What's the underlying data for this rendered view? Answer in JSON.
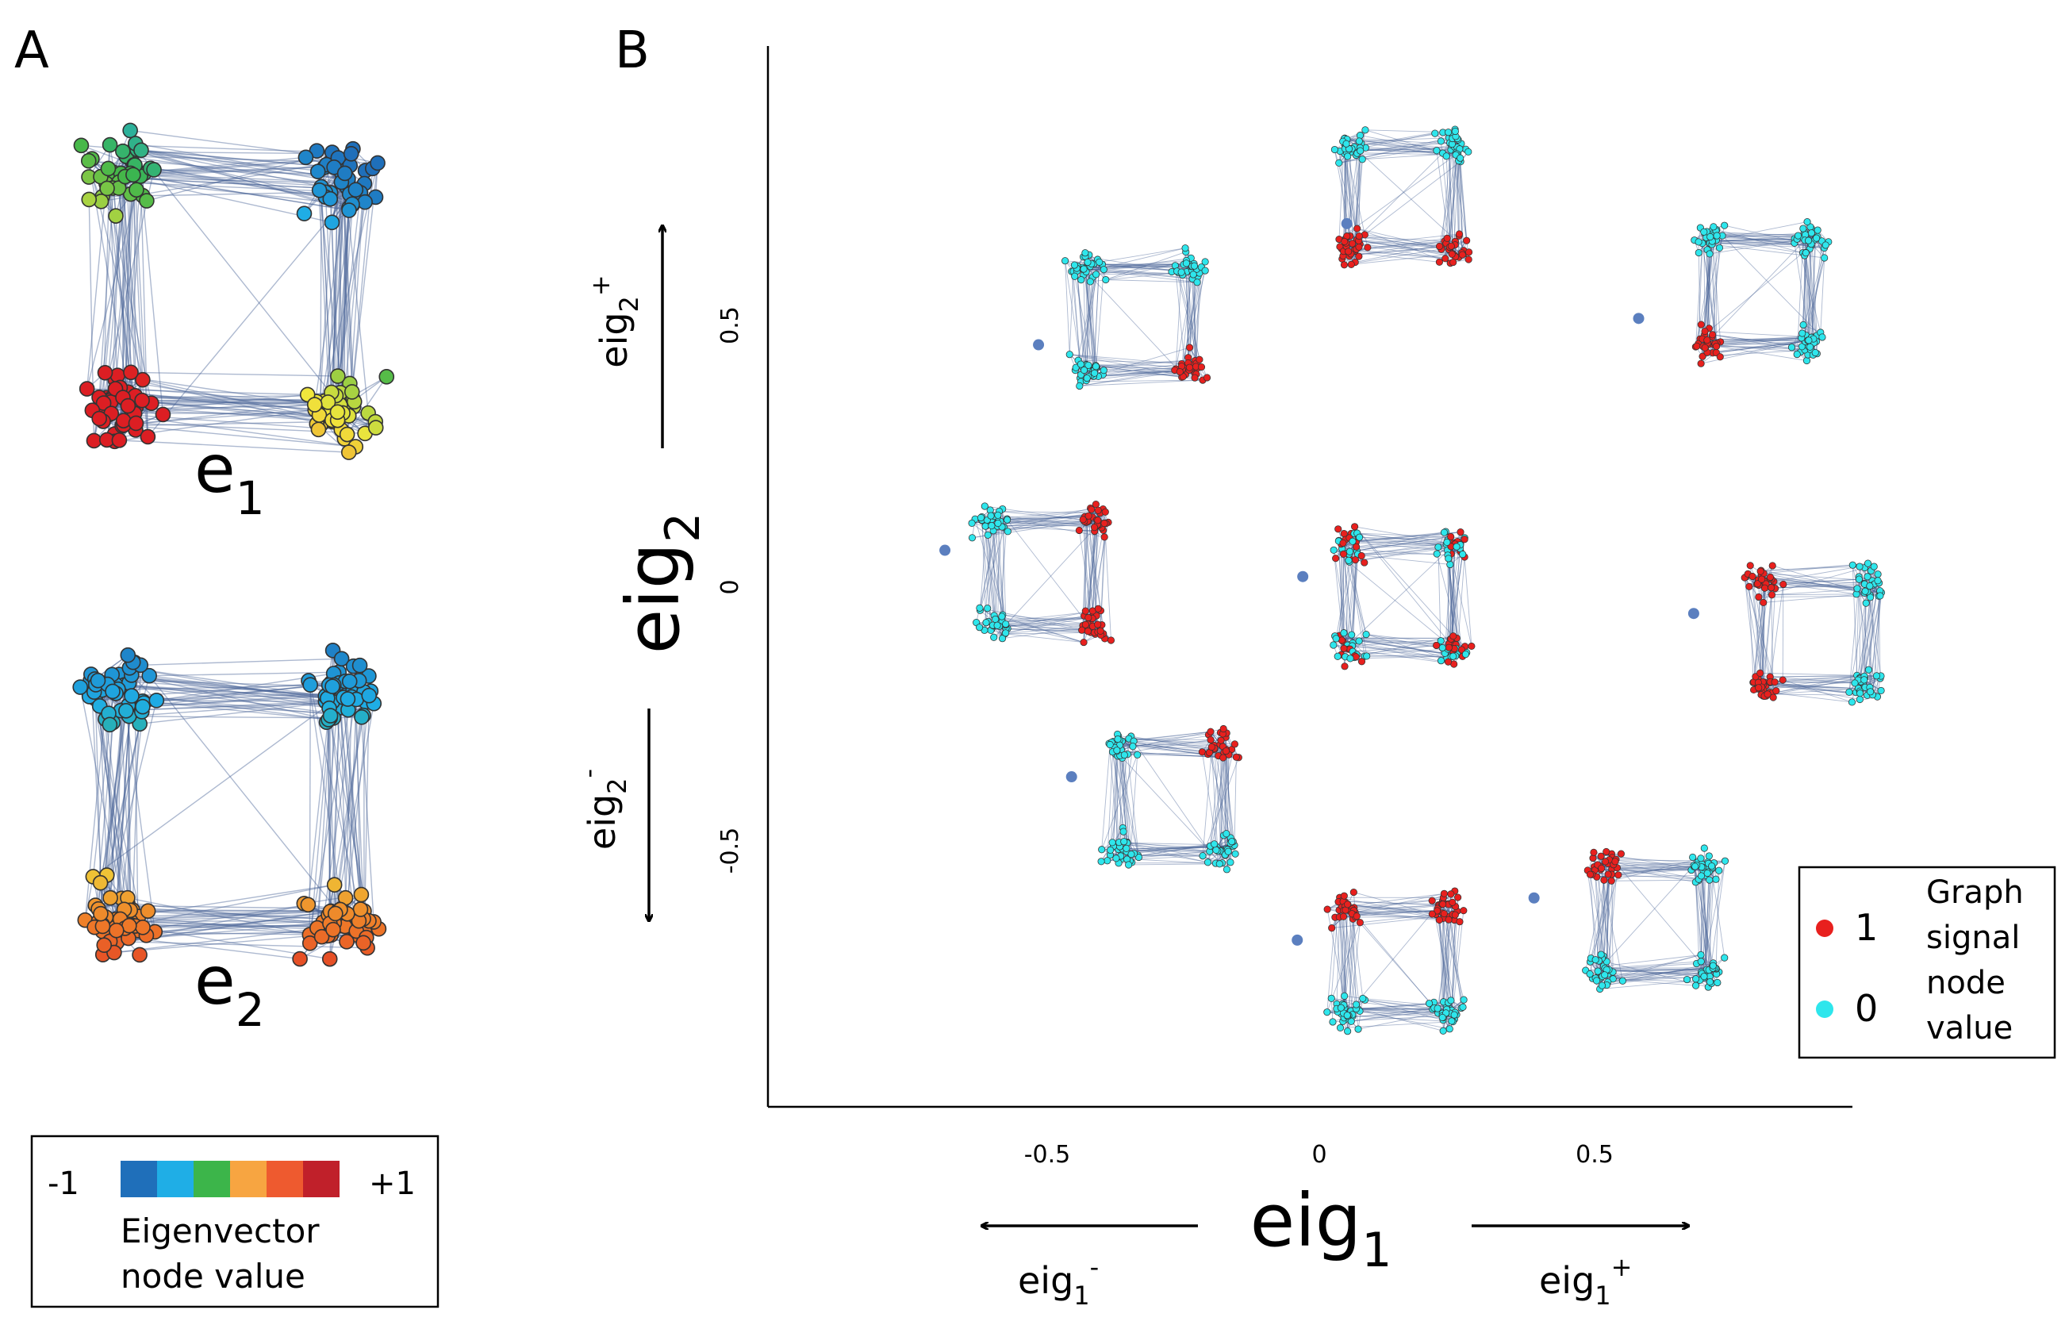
{
  "panel_a": {
    "letter": "A",
    "graph_labels": [
      {
        "base": "e",
        "sub": "1"
      },
      {
        "base": "e",
        "sub": "2"
      }
    ],
    "colorbar": {
      "min_label": "-1",
      "max_label": "+1",
      "title_line1": "Eigenvector",
      "title_line2": "node value",
      "colors": [
        "#1f6fba",
        "#1faee6",
        "#3cb54a",
        "#f7a541",
        "#ee5a2f",
        "#c0202a"
      ]
    }
  },
  "panel_b": {
    "letter": "B",
    "x_axis": {
      "label_base": "eig",
      "label_sub": "1",
      "ticks": [
        "-0.5",
        "0",
        "0.5"
      ],
      "neg_base": "eig",
      "neg_sub": "1",
      "neg_sup": "-",
      "pos_base": "eig",
      "pos_sub": "1",
      "pos_sup": "+"
    },
    "y_axis": {
      "label_base": "eig",
      "label_sub": "2",
      "ticks": [
        "0.5",
        "0",
        "-0.5"
      ],
      "pos_base": "eig",
      "pos_sub": "2",
      "pos_sup": "+",
      "neg_base": "eig",
      "neg_sub": "2",
      "neg_sup": "-"
    },
    "legend": {
      "val1": "1",
      "val0": "0",
      "title_lines": [
        "Graph",
        "signal",
        "node",
        "value"
      ],
      "color1": "#e8201e",
      "color0": "#2ee6ec"
    },
    "point_color": "#5b7fbf"
  },
  "chart_data": {
    "type": "scatter",
    "xlim": [
      -1,
      1
    ],
    "ylim": [
      -1,
      1
    ],
    "points": [
      {
        "x": 0.05,
        "y": 0.69
      },
      {
        "x": 0.58,
        "y": 0.51
      },
      {
        "x": -0.51,
        "y": 0.46
      },
      {
        "x": -0.68,
        "y": 0.07
      },
      {
        "x": -0.03,
        "y": 0.02
      },
      {
        "x": 0.68,
        "y": -0.05
      },
      {
        "x": -0.45,
        "y": -0.36
      },
      {
        "x": 0.39,
        "y": -0.59
      },
      {
        "x": -0.04,
        "y": -0.67
      }
    ]
  }
}
